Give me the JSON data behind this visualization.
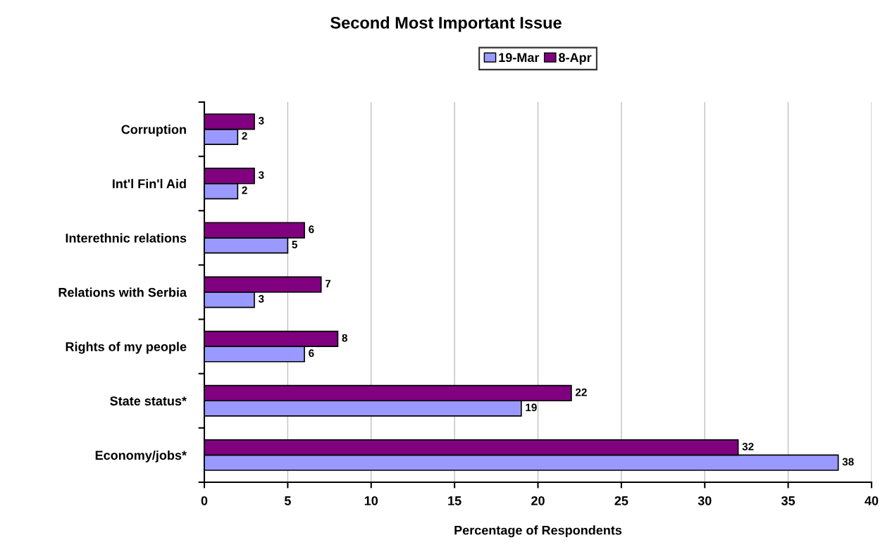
{
  "chart_data": {
    "type": "bar",
    "orientation": "horizontal",
    "title": "Second Most Important Issue",
    "xlabel": "Percentage of Respondents",
    "categories": [
      "Corruption",
      "Int'l Fin'l Aid",
      "Interethnic relations",
      "Relations with Serbia",
      "Rights of my people",
      "State status*",
      "Economy/jobs*"
    ],
    "series": [
      {
        "name": "19-Mar",
        "color": "#9999ff",
        "values": [
          2,
          2,
          5,
          3,
          6,
          19,
          38
        ]
      },
      {
        "name": "8-Apr",
        "color": "#800080",
        "values": [
          3,
          3,
          6,
          7,
          8,
          22,
          32
        ]
      }
    ],
    "xlim": [
      0,
      40
    ],
    "xticks": [
      0,
      5,
      10,
      15,
      20,
      25,
      30,
      35,
      40
    ],
    "grid": "x",
    "legend": "top",
    "data_labels": true
  }
}
